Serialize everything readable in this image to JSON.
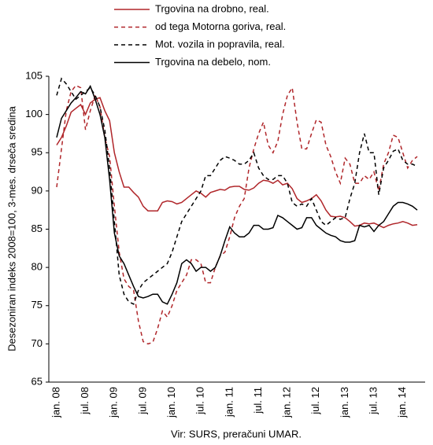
{
  "chart_data": {
    "type": "line",
    "y_label": "Desezoniran indeks 2008=100, 3-mes. drseča sredina",
    "source": "Vir: SURS, preračuni UMAR.",
    "categories": [
      "jan. 08",
      null,
      null,
      null,
      null,
      null,
      "jul. 08",
      null,
      null,
      null,
      null,
      null,
      "jan. 09",
      null,
      null,
      null,
      null,
      null,
      "jul. 09",
      null,
      null,
      null,
      null,
      null,
      "jan. 10",
      null,
      null,
      null,
      null,
      null,
      "jul. 10",
      null,
      null,
      null,
      null,
      null,
      "jan. 11",
      null,
      null,
      null,
      null,
      null,
      "jul. 11",
      null,
      null,
      null,
      null,
      null,
      "jan. 12",
      null,
      null,
      null,
      null,
      null,
      "jul. 12",
      null,
      null,
      null,
      null,
      null,
      "jan. 13",
      null,
      null,
      null,
      null,
      null,
      "jul. 13",
      null,
      null,
      null,
      null,
      null,
      "jan. 14",
      null,
      null,
      null
    ],
    "series": [
      {
        "name": "Trgovina na drobno, real.",
        "color": "#b0262a",
        "dashed": false,
        "values": [
          96,
          97,
          98.5,
          100.3,
          100.8,
          101.3,
          100,
          101.5,
          102,
          102.2,
          100.5,
          99.2,
          95,
          92.5,
          90.5,
          90.5,
          89.8,
          89.2,
          88,
          87.4,
          87.4,
          87.4,
          88.5,
          88.7,
          88.6,
          88.3,
          88.5,
          89,
          89.5,
          90,
          89.7,
          89.2,
          89.8,
          90,
          90.2,
          90.1,
          90.5,
          90.6,
          90.6,
          90.2,
          90.1,
          90.4,
          91,
          91.4,
          91.3,
          91,
          91.4,
          90.8,
          91,
          90.3,
          89,
          88.5,
          88.7,
          89,
          89.5,
          88.7,
          87.5,
          86.7,
          86.6,
          86.7,
          86.5,
          86,
          85.4,
          85.5,
          85.8,
          85.7,
          85.8,
          85.5,
          85.2,
          85.5,
          85.7,
          85.8,
          86,
          85.8,
          85.5,
          85.6
        ]
      },
      {
        "name": "od tega Motorna goriva, real.",
        "color": "#b0262a",
        "dashed": true,
        "values": [
          90.5,
          95.5,
          100.5,
          103,
          103.8,
          103.5,
          98,
          100.5,
          102.5,
          101,
          97,
          94.5,
          88,
          82,
          78.5,
          77.5,
          77,
          73,
          70.3,
          70,
          70.2,
          72,
          74.3,
          73.5,
          75,
          77,
          78,
          79,
          81,
          81,
          80.5,
          78,
          78,
          80,
          81.5,
          82,
          84,
          86.5,
          88,
          89,
          93,
          95.5,
          97.5,
          99,
          96,
          95,
          96.5,
          100,
          102.5,
          103.5,
          99,
          95.5,
          95.5,
          97.5,
          99.3,
          99,
          96,
          94.5,
          92.5,
          91,
          94.3,
          93.5,
          91,
          91,
          92,
          91.5,
          92.5,
          90,
          93.5,
          95,
          97.3,
          97,
          95,
          93,
          94,
          94.5
        ]
      },
      {
        "name": "Mot. vozila in popravila, real.",
        "color": "#000000",
        "dashed": true,
        "values": [
          102.5,
          104.7,
          104,
          103,
          102,
          102.5,
          103,
          103.5,
          102.5,
          101,
          98,
          93,
          86,
          79,
          76.5,
          75.5,
          75.2,
          77,
          78,
          78.5,
          79,
          79.5,
          80,
          80.5,
          82,
          84,
          86,
          87,
          88,
          89,
          90,
          92,
          92,
          93,
          94,
          94.5,
          94.3,
          94,
          93.5,
          93.5,
          94,
          95,
          93,
          92,
          91.5,
          91.5,
          92,
          92,
          91,
          88.5,
          88,
          88.3,
          88,
          89,
          87.5,
          86,
          85.5,
          86,
          86.5,
          86.3,
          86.5,
          89,
          91,
          95,
          97.5,
          95,
          95,
          89.5,
          93,
          94,
          95.2,
          95.5,
          94,
          93.5,
          93.5,
          93.2
        ]
      },
      {
        "name": "Trgovina na debelo, nom.",
        "color": "#000000",
        "dashed": false,
        "values": [
          97,
          99.5,
          100.5,
          101.5,
          102.2,
          103,
          102.7,
          103.7,
          102,
          100,
          97,
          91.5,
          84.5,
          81.5,
          80.5,
          79,
          77.5,
          76.2,
          76,
          76.2,
          76.5,
          76.5,
          75.5,
          75.2,
          76.5,
          78,
          80.5,
          81,
          80.5,
          79.5,
          80,
          80,
          79.5,
          80,
          81.5,
          83.5,
          85.3,
          84.5,
          84,
          84,
          84.5,
          85.5,
          85.5,
          85,
          85,
          85.2,
          86.8,
          86.5,
          86,
          85.5,
          85,
          85.2,
          86.5,
          86.5,
          85.5,
          85,
          84.5,
          84.2,
          84,
          83.5,
          83.3,
          83.3,
          83.5,
          85.5,
          85.3,
          85.5,
          84.7,
          85.5,
          86,
          87,
          88,
          88.5,
          88.5,
          88.3,
          88,
          87.5
        ]
      }
    ],
    "ylim": [
      65,
      105
    ],
    "yticks": [
      65,
      70,
      75,
      80,
      85,
      90,
      95,
      100,
      105
    ],
    "grid": false
  }
}
